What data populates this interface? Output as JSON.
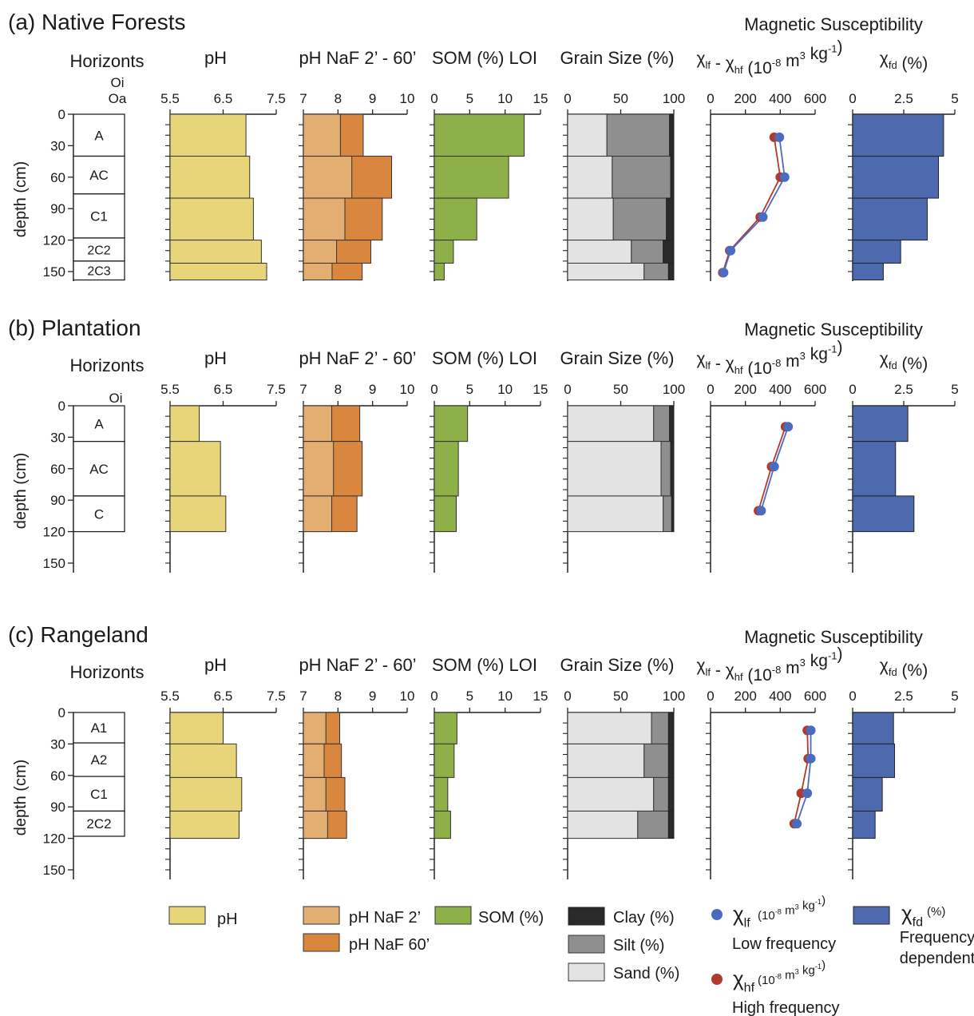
{
  "labels": {
    "horizons": "Horizonts",
    "ph": "pH",
    "naf": "pH NaF 2’ - 60’",
    "som": "SOM (%) LOI",
    "grain": "Grain Size (%)",
    "magsus": "Magnetic Susceptibility",
    "chi_diff": "χlf - χhf (10-8 m3 kg-1)",
    "chi_fd": "χfd (%)",
    "depth": "depth (cm)"
  },
  "chart_data": [
    {
      "type": "bar",
      "panel": "(a) Native Forests",
      "depth_ticks": [
        "0",
        "30",
        "60",
        "90",
        "120",
        "150"
      ],
      "organic_horizons": [
        "Oi",
        "Oa"
      ],
      "horizons": [
        {
          "name": "A",
          "top": 0,
          "bottom": 40
        },
        {
          "name": "AC",
          "top": 40,
          "bottom": 76
        },
        {
          "name": "C1",
          "top": 76,
          "bottom": 118
        },
        {
          "name": "2C2",
          "top": 118,
          "bottom": 140
        },
        {
          "name": "2C3",
          "top": 140,
          "bottom": 158
        }
      ],
      "intervals": [
        [
          0,
          40
        ],
        [
          40,
          80
        ],
        [
          80,
          120
        ],
        [
          120,
          142
        ],
        [
          142,
          158
        ]
      ],
      "ph": [
        6.93,
        7.0,
        7.07,
        7.22,
        7.32
      ],
      "naf_2": [
        8.07,
        8.4,
        8.2,
        7.96,
        7.83
      ],
      "naf_60": [
        8.73,
        9.55,
        9.28,
        8.95,
        8.7
      ],
      "som": [
        12.7,
        10.5,
        6.0,
        2.7,
        1.4
      ],
      "sand": [
        37,
        42,
        43,
        60,
        72
      ],
      "silt": [
        59,
        55,
        50,
        30,
        23
      ],
      "clay": [
        4,
        3,
        7,
        10,
        5
      ],
      "chi_points": [
        {
          "depth": 22,
          "lf": 395,
          "hf": 365
        },
        {
          "depth": 60,
          "lf": 425,
          "hf": 400
        },
        {
          "depth": 98,
          "lf": 300,
          "hf": 285
        },
        {
          "depth": 130,
          "lf": 115,
          "hf": 110
        },
        {
          "depth": 151,
          "lf": 75,
          "hf": 70
        }
      ],
      "fd": [
        4.45,
        4.2,
        3.65,
        2.35,
        1.5
      ]
    },
    {
      "type": "bar",
      "panel": "(b) Plantation",
      "depth_ticks": [
        "0",
        "30",
        "60",
        "90",
        "120",
        "150"
      ],
      "organic_horizons": [
        "Oi"
      ],
      "horizons": [
        {
          "name": "A",
          "top": 0,
          "bottom": 34
        },
        {
          "name": "AC",
          "top": 34,
          "bottom": 86
        },
        {
          "name": "C",
          "top": 86,
          "bottom": 120
        }
      ],
      "intervals": [
        [
          0,
          34
        ],
        [
          34,
          86
        ],
        [
          86,
          120
        ]
      ],
      "ph": [
        6.05,
        6.45,
        6.55
      ],
      "naf_2": [
        7.82,
        7.87,
        7.82
      ],
      "naf_60": [
        8.63,
        8.7,
        8.55
      ],
      "som": [
        4.7,
        3.4,
        3.1
      ],
      "sand": [
        81,
        88,
        90
      ],
      "silt": [
        15,
        9,
        8
      ],
      "clay": [
        4,
        3,
        2
      ],
      "chi_points": [
        {
          "depth": 20,
          "lf": 445,
          "hf": 430
        },
        {
          "depth": 58,
          "lf": 365,
          "hf": 350
        },
        {
          "depth": 100,
          "lf": 290,
          "hf": 275
        }
      ],
      "fd": [
        2.7,
        2.1,
        3.0
      ]
    },
    {
      "type": "bar",
      "panel": "(c) Rangeland",
      "depth_ticks": [
        "0",
        "30",
        "60",
        "90",
        "120",
        "150"
      ],
      "organic_horizons": [],
      "horizons": [
        {
          "name": "A1",
          "top": 0,
          "bottom": 29
        },
        {
          "name": "A2",
          "top": 29,
          "bottom": 61
        },
        {
          "name": "C1",
          "top": 61,
          "bottom": 94
        },
        {
          "name": "2C2",
          "top": 94,
          "bottom": 118
        }
      ],
      "intervals": [
        [
          0,
          30
        ],
        [
          30,
          62
        ],
        [
          62,
          94
        ],
        [
          94,
          120
        ]
      ],
      "ph": [
        6.5,
        6.75,
        6.85,
        6.8
      ],
      "naf_2": [
        7.65,
        7.6,
        7.65,
        7.7
      ],
      "naf_60": [
        8.05,
        8.1,
        8.2,
        8.25
      ],
      "som": [
        3.2,
        2.8,
        1.9,
        2.3
      ],
      "sand": [
        79,
        72,
        81,
        66
      ],
      "silt": [
        16,
        23,
        14,
        29
      ],
      "clay": [
        5,
        5,
        5,
        5
      ],
      "chi_points": [
        {
          "depth": 17,
          "lf": 575,
          "hf": 555
        },
        {
          "depth": 44,
          "lf": 575,
          "hf": 560
        },
        {
          "depth": 77,
          "lf": 555,
          "hf": 520
        },
        {
          "depth": 106,
          "lf": 495,
          "hf": 480
        }
      ],
      "fd": [
        2.0,
        2.05,
        1.45,
        1.1
      ]
    }
  ],
  "axes": {
    "ph": {
      "ticks": [
        "5.5",
        "6.5",
        "7.5"
      ],
      "min": 5.5,
      "max": 7.5
    },
    "naf": {
      "ticks": [
        "7",
        "8",
        "9",
        "10"
      ],
      "min": 7,
      "max": 10
    },
    "som": {
      "ticks": [
        "0",
        "5",
        "10",
        "15"
      ],
      "min": 0,
      "max": 15
    },
    "grain": {
      "ticks": [
        "0",
        "50",
        "100"
      ],
      "min": 0,
      "max": 100
    },
    "chi": {
      "ticks": [
        "0",
        "200",
        "400",
        "600"
      ],
      "min": 0,
      "max": 600
    },
    "fd": {
      "ticks": [
        "0",
        "2.5",
        "5"
      ],
      "min": 0,
      "max": 5
    }
  },
  "legend": {
    "ph": "pH",
    "naf2": "pH NaF 2’",
    "naf60": "pH NaF 60’",
    "som": "SOM (%)",
    "clay": "Clay (%)",
    "silt": "Silt (%)",
    "sand": "Sand (%)",
    "lf_unit": "(10-8 m3 kg-1)",
    "lf_desc": "Low frequency",
    "hf_unit": "(10-8 m3 kg-1)",
    "hf_desc": "High frequency",
    "fd_unit": "(%)",
    "fd_desc1": "Frequency",
    "fd_desc2": "dependent"
  },
  "colors": {
    "ph": "#E8D57A",
    "naf2": "#E3AE72",
    "naf60": "#D9873F",
    "som": "#8DB048",
    "sand": "#E3E3E3",
    "silt": "#8F8F8F",
    "clay": "#2A2A2A",
    "lf": "#4A6CC0",
    "hf": "#B03A2E",
    "fd": "#4E6AAE"
  }
}
